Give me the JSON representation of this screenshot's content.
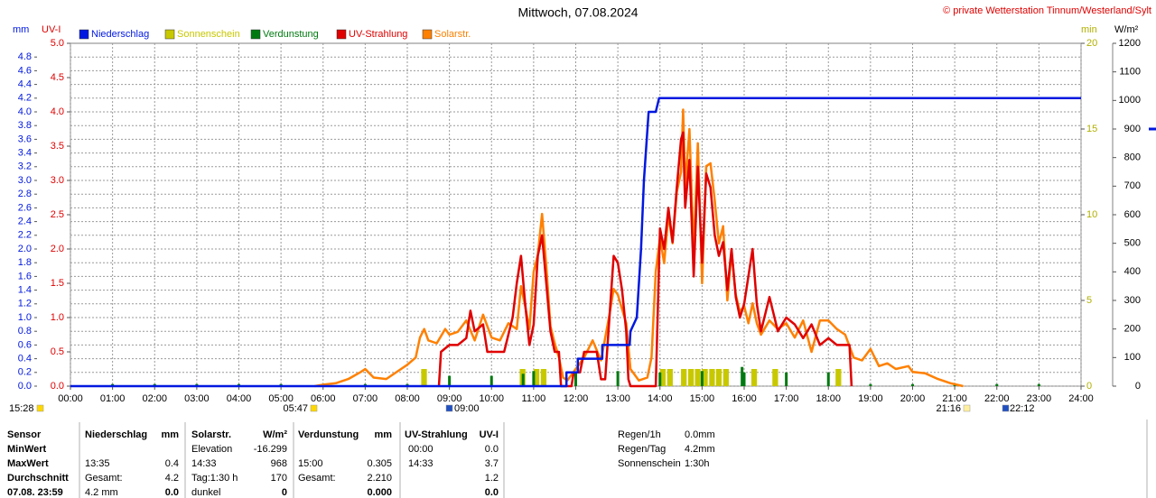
{
  "chart_data": {
    "type": "line",
    "title": "Mittwoch, 07.08.2024",
    "source": "© private Wetterstation Tinnum/Westerland/Sylt",
    "ylabel": "mm",
    "y2label": "UV-I",
    "y3label": "min",
    "y4label": "W/m²",
    "grid": true,
    "xlim": [
      0,
      24
    ],
    "xticks": [
      {
        "value": 0,
        "label": "00:00"
      },
      {
        "value": 1,
        "label": "01:00"
      },
      {
        "value": 2,
        "label": "02:00"
      },
      {
        "value": 3,
        "label": "03:00"
      },
      {
        "value": 4,
        "label": "04:00"
      },
      {
        "value": 5,
        "label": "05:00"
      },
      {
        "value": 6,
        "label": "06:00"
      },
      {
        "value": 7,
        "label": "07:00"
      },
      {
        "value": 8,
        "label": "08:00"
      },
      {
        "value": 9,
        "label": "09:00"
      },
      {
        "value": 10,
        "label": "10:00"
      },
      {
        "value": 11,
        "label": "11:00"
      },
      {
        "value": 12,
        "label": "12:00"
      },
      {
        "value": 13,
        "label": "13:00"
      },
      {
        "value": 14,
        "label": "14:00"
      },
      {
        "value": 15,
        "label": "15:00"
      },
      {
        "value": 16,
        "label": "16:00"
      },
      {
        "value": 17,
        "label": "17:00"
      },
      {
        "value": 18,
        "label": "18:00"
      },
      {
        "value": 19,
        "label": "19:00"
      },
      {
        "value": 20,
        "label": "20:00"
      },
      {
        "value": 21,
        "label": "21:00"
      },
      {
        "value": 22,
        "label": "22:00"
      },
      {
        "value": 23,
        "label": "23:00"
      },
      {
        "value": 24,
        "label": "24:00"
      }
    ],
    "ylim": [
      0,
      5
    ],
    "yticks": [
      {
        "value": 0,
        "label": "0.0"
      },
      0.2,
      0.4,
      0.6,
      0.8,
      {
        "value": 1,
        "label": "1.0"
      },
      1.2,
      1.4,
      1.6,
      1.8,
      {
        "value": 2,
        "label": "2.0"
      },
      2.2,
      2.4,
      2.6,
      2.8,
      {
        "value": 3,
        "label": "3.0"
      },
      3.2,
      3.4,
      3.6,
      3.8,
      {
        "value": 4,
        "label": "4.0"
      },
      4.2,
      4.4,
      4.6,
      4.8
    ],
    "y2lim": [
      0,
      5
    ],
    "y2ticks": [
      {
        "value": 0,
        "label": "0.0"
      },
      0.5,
      {
        "value": 1,
        "label": "1.0"
      },
      1.5,
      {
        "value": 2,
        "label": "2.0"
      },
      2.5,
      {
        "value": 3,
        "label": "3.0"
      },
      3.5,
      {
        "value": 4,
        "label": "4.0"
      },
      4.5,
      {
        "value": 5,
        "label": "5.0"
      }
    ],
    "y3lim": [
      0,
      20
    ],
    "y3ticks": [
      0,
      5,
      10,
      15,
      20
    ],
    "y4lim": [
      0,
      1200
    ],
    "y4ticks": [
      0,
      100,
      200,
      300,
      400,
      500,
      600,
      700,
      800,
      900,
      1000,
      1100,
      1200
    ],
    "series": [
      {
        "name": "Niederschlag",
        "color": "#0018e0",
        "axis": "y",
        "type": "line",
        "x": [
          0,
          11.78,
          11.78,
          12.05,
          12.05,
          12.63,
          12.63,
          13.28,
          13.3,
          13.45,
          13.55,
          13.62,
          13.73,
          13.9,
          13.98,
          24
        ],
        "values": [
          0,
          0,
          0.2,
          0.2,
          0.4,
          0.4,
          0.6,
          0.6,
          0.8,
          1.0,
          2.0,
          3.0,
          4.0,
          4.0,
          4.2,
          4.2
        ]
      },
      {
        "name": "Sonnenschein",
        "color": "#c8c800",
        "axis": "y3",
        "type": "bar",
        "x": [
          8.33,
          10.67,
          11.0,
          11.17,
          14.0,
          14.17,
          14.5,
          14.67,
          14.83,
          15.0,
          15.17,
          15.33,
          15.5,
          16.17,
          16.67,
          18.17
        ],
        "values": [
          1,
          1,
          1,
          1,
          1,
          1,
          1,
          1,
          1,
          1,
          1,
          1,
          1,
          1,
          1,
          1
        ]
      },
      {
        "name": "Verdunstung",
        "color": "#007a10",
        "axis": "y",
        "type": "bar",
        "x": [
          1,
          2,
          3,
          4,
          5,
          6,
          7,
          8,
          9,
          10,
          10.75,
          11,
          12,
          13,
          14,
          15,
          15.95,
          16,
          17,
          18,
          19,
          20,
          21,
          22,
          23
        ],
        "values": [
          0.03,
          0.03,
          0.03,
          0.03,
          0.03,
          0.03,
          0.03,
          0.03,
          0.15,
          0.15,
          0.18,
          0.22,
          0.2,
          0.22,
          0.2,
          0.22,
          0.28,
          0.2,
          0.2,
          0.2,
          0.03,
          0.03,
          0.03,
          0.03,
          0.03
        ]
      },
      {
        "name": "UV-Strahlung",
        "color": "#e00000",
        "axis": "y2",
        "type": "line",
        "x": [
          8.75,
          8.8,
          9.0,
          9.2,
          9.4,
          9.5,
          9.6,
          9.8,
          9.9,
          10.1,
          10.3,
          10.5,
          10.6,
          10.7,
          10.8,
          10.9,
          11.0,
          11.1,
          11.2,
          11.3,
          11.4,
          11.5,
          11.6,
          11.65,
          11.9,
          11.95,
          12.1,
          12.2,
          12.5,
          12.6,
          12.7,
          12.8,
          12.9,
          13.0,
          13.1,
          13.2,
          13.25,
          13.3,
          13.9,
          14.0,
          14.1,
          14.2,
          14.3,
          14.4,
          14.5,
          14.55,
          14.6,
          14.7,
          14.8,
          14.9,
          15.0,
          15.1,
          15.2,
          15.3,
          15.4,
          15.5,
          15.6,
          15.7,
          15.8,
          15.9,
          16.0,
          16.2,
          16.3,
          16.4,
          16.6,
          16.8,
          17.0,
          17.2,
          17.4,
          17.6,
          17.8,
          18.0,
          18.2,
          18.4,
          18.5,
          18.55
        ],
        "values": [
          0,
          0.5,
          0.6,
          0.6,
          0.7,
          1.1,
          0.8,
          0.9,
          0.5,
          0.5,
          0.5,
          1.0,
          1.5,
          1.9,
          1.2,
          0.6,
          0.9,
          1.9,
          2.2,
          1.5,
          0.8,
          0.5,
          0.5,
          0,
          0,
          0.2,
          0.2,
          0.5,
          0.5,
          0.1,
          0.1,
          1.0,
          1.9,
          1.8,
          1.4,
          0.8,
          0.1,
          0,
          0,
          2.3,
          2.0,
          2.6,
          2.1,
          2.9,
          3.6,
          3.7,
          2.6,
          3.3,
          1.6,
          3.2,
          1.8,
          3.1,
          2.9,
          2.2,
          1.9,
          2.1,
          1.4,
          2.0,
          1.3,
          1.0,
          1.2,
          2.0,
          1.2,
          0.8,
          1.3,
          0.8,
          1.0,
          0.9,
          0.7,
          0.9,
          0.6,
          0.7,
          0.6,
          0.6,
          0.6,
          0
        ]
      },
      {
        "name": "Solarstr.",
        "color": "#ff8000",
        "axis": "y4",
        "type": "line",
        "x": [
          5.8,
          6.0,
          6.3,
          6.6,
          6.9,
          7.0,
          7.2,
          7.5,
          7.8,
          8.0,
          8.2,
          8.3,
          8.4,
          8.5,
          8.7,
          8.9,
          9.0,
          9.2,
          9.4,
          9.6,
          9.8,
          10.0,
          10.2,
          10.4,
          10.6,
          10.7,
          10.8,
          10.9,
          11.0,
          11.1,
          11.2,
          11.3,
          11.4,
          11.5,
          11.6,
          11.7,
          11.8,
          12.0,
          12.2,
          12.4,
          12.6,
          12.8,
          12.9,
          13.0,
          13.2,
          13.3,
          13.5,
          13.7,
          13.8,
          13.9,
          14.0,
          14.1,
          14.2,
          14.3,
          14.4,
          14.5,
          14.55,
          14.6,
          14.7,
          14.8,
          14.9,
          15.0,
          15.1,
          15.2,
          15.3,
          15.4,
          15.5,
          15.6,
          15.7,
          15.8,
          15.9,
          16.0,
          16.1,
          16.2,
          16.3,
          16.4,
          16.6,
          16.8,
          17.0,
          17.2,
          17.4,
          17.6,
          17.8,
          18.0,
          18.2,
          18.4,
          18.6,
          18.8,
          19.0,
          19.2,
          19.4,
          19.6,
          19.9,
          20.0,
          20.3,
          20.6,
          20.9,
          21.2
        ],
        "values": [
          0,
          5,
          10,
          25,
          50,
          60,
          30,
          25,
          55,
          75,
          100,
          170,
          200,
          160,
          150,
          200,
          180,
          190,
          230,
          160,
          250,
          170,
          160,
          220,
          200,
          350,
          280,
          200,
          400,
          460,
          603,
          420,
          210,
          150,
          100,
          30,
          20,
          60,
          100,
          160,
          90,
          250,
          340,
          320,
          220,
          60,
          20,
          30,
          100,
          400,
          520,
          430,
          600,
          500,
          680,
          750,
          968,
          700,
          900,
          470,
          850,
          360,
          770,
          780,
          650,
          500,
          560,
          300,
          470,
          320,
          260,
          280,
          220,
          290,
          220,
          180,
          230,
          200,
          220,
          170,
          230,
          120,
          230,
          230,
          200,
          180,
          100,
          90,
          130,
          70,
          80,
          60,
          70,
          50,
          45,
          25,
          10,
          0
        ]
      }
    ],
    "annotations": [
      "15:28",
      "05:47",
      "09:00",
      "21:16",
      "22:12"
    ]
  },
  "stats_table": {
    "rows": [
      [
        "Sensor",
        "Niederschlag",
        "mm",
        "Solarstr.",
        "W/m²",
        "Verdunstung",
        "mm",
        "UV-Strahlung",
        "UV-I"
      ],
      [
        "MinWert",
        null,
        null,
        "Elevation",
        "-16.299",
        null,
        null,
        "00:00",
        "0.0"
      ],
      [
        "MaxWert",
        "13:35",
        "0.4",
        "14:33",
        "968",
        "15:00",
        "0.305",
        "14:33",
        "3.7"
      ],
      [
        "Durchschnitt",
        "Gesamt:",
        "4.2",
        "Tag:1:30 h",
        "170",
        "Gesamt:",
        "2.210",
        null,
        "1.2"
      ],
      [
        "07.08. 23:59",
        "4.2 mm",
        "0.0",
        "dunkel",
        "0",
        null,
        "0.000",
        null,
        "0.0"
      ]
    ],
    "summary": [
      [
        "Regen/1h",
        "0.0mm"
      ],
      [
        "Regen/Tag",
        "4.2mm"
      ],
      [
        "Sonnenschein",
        "1:30h"
      ]
    ]
  }
}
